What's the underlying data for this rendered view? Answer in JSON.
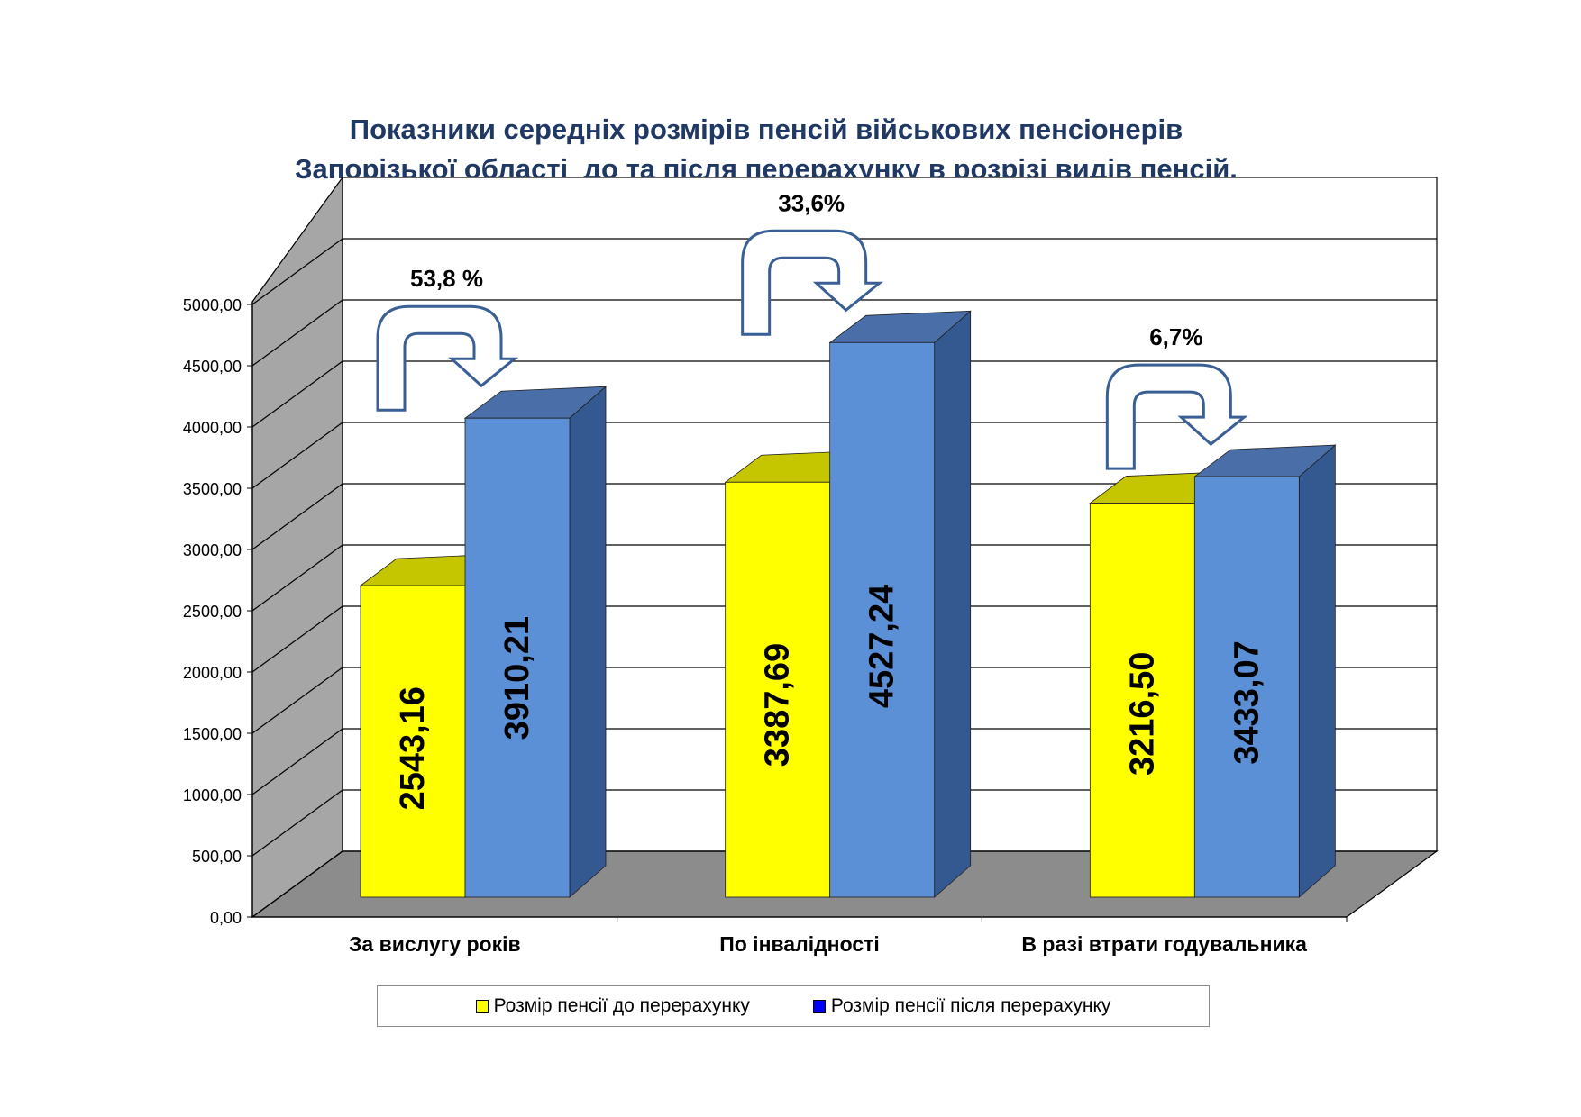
{
  "chart_data": {
    "type": "bar",
    "title": [
      "Показники середніх розмірів пенсій військових пенсіонерів",
      "Запорізької області  до та після перерахунку в розрізі видів пенсій."
    ],
    "categories": [
      "За вислугу років",
      "По інвалідності",
      "В разі втрати годувальника"
    ],
    "series": [
      {
        "name": "Розмір пенсії до перерахунку",
        "color": "#ffff00",
        "values": [
          2543.16,
          3387.69,
          3216.5
        ],
        "labels": [
          "2543,16",
          "3387,69",
          "3216,50"
        ]
      },
      {
        "name": "Розмір пенсії після перерахунку",
        "color": "#5b8fd6",
        "values": [
          3910.21,
          4527.24,
          3433.07
        ],
        "labels": [
          "3910,21",
          "4527,24",
          "3433,07"
        ]
      }
    ],
    "annotations": [
      "53,8 %",
      "33,6%",
      "6,7%"
    ],
    "ylim": [
      0,
      5000
    ],
    "yticks": [
      "0,00",
      "500,00",
      "1000,00",
      "1500,00",
      "2000,00",
      "2500,00",
      "3000,00",
      "3500,00",
      "4000,00",
      "4500,00",
      "5000,00"
    ],
    "grid": true,
    "legend_position": "bottom",
    "style": "3d-clustered"
  },
  "legend_swatch_colors": [
    "#ffff00",
    "#0000ff"
  ]
}
